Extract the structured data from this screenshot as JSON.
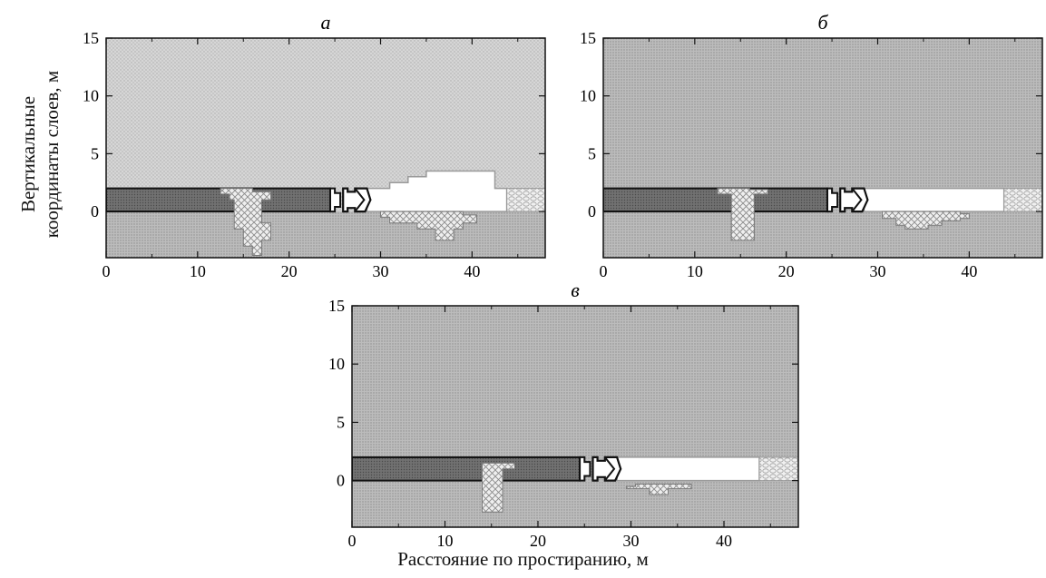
{
  "figure": {
    "ylabel_line1": "Вертикальные",
    "ylabel_line2": "координаты слоев, м",
    "xlabel": "Расстояние по простиранию, м"
  },
  "colors": {
    "upper_rock_a": "#dcdcdc",
    "upper_rock": "#bdbdbd",
    "lower_rock": "#b9b9b9",
    "seam": "#6e6e6e",
    "void": "#ffffff",
    "hatch": "#e6e6e6"
  },
  "panels": [
    {
      "label": "а",
      "xticks": [
        "0",
        "10",
        "20",
        "30",
        "40"
      ],
      "yticks": [
        "15",
        "10",
        "5",
        "0"
      ]
    },
    {
      "label": "б",
      "xticks": [
        "0",
        "10",
        "20",
        "30",
        "40"
      ],
      "yticks": [
        "15",
        "10",
        "5",
        "0"
      ]
    },
    {
      "label": "в",
      "xticks": [
        "0",
        "10",
        "20",
        "30",
        "40"
      ],
      "yticks": [
        "15",
        "10",
        "5",
        "0"
      ]
    }
  ]
}
